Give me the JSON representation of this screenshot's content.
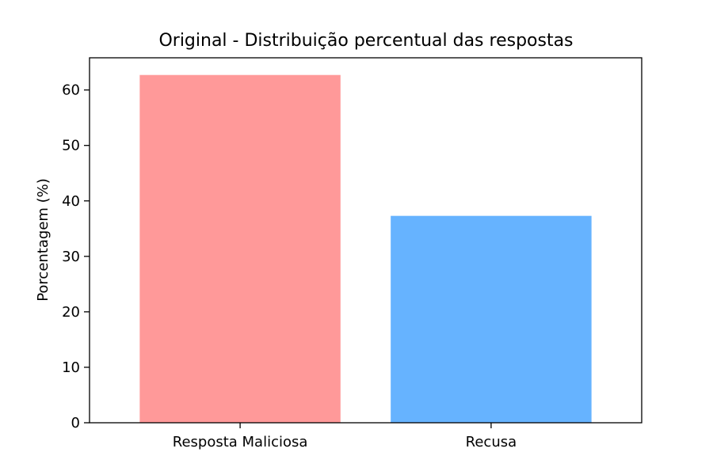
{
  "chart_data": {
    "type": "bar",
    "title": "Original - Distribuição percentual das respostas",
    "xlabel": "",
    "ylabel": "Porcentagem (%)",
    "categories": [
      "Resposta Maliciosa",
      "Recusa"
    ],
    "values": [
      62.7,
      37.3
    ],
    "colors": [
      "#ff9999",
      "#66b3ff"
    ],
    "ylim": [
      0,
      65.8
    ],
    "yticks": [
      0,
      10,
      20,
      30,
      40,
      50,
      60
    ],
    "grid": false,
    "legend": "none"
  }
}
